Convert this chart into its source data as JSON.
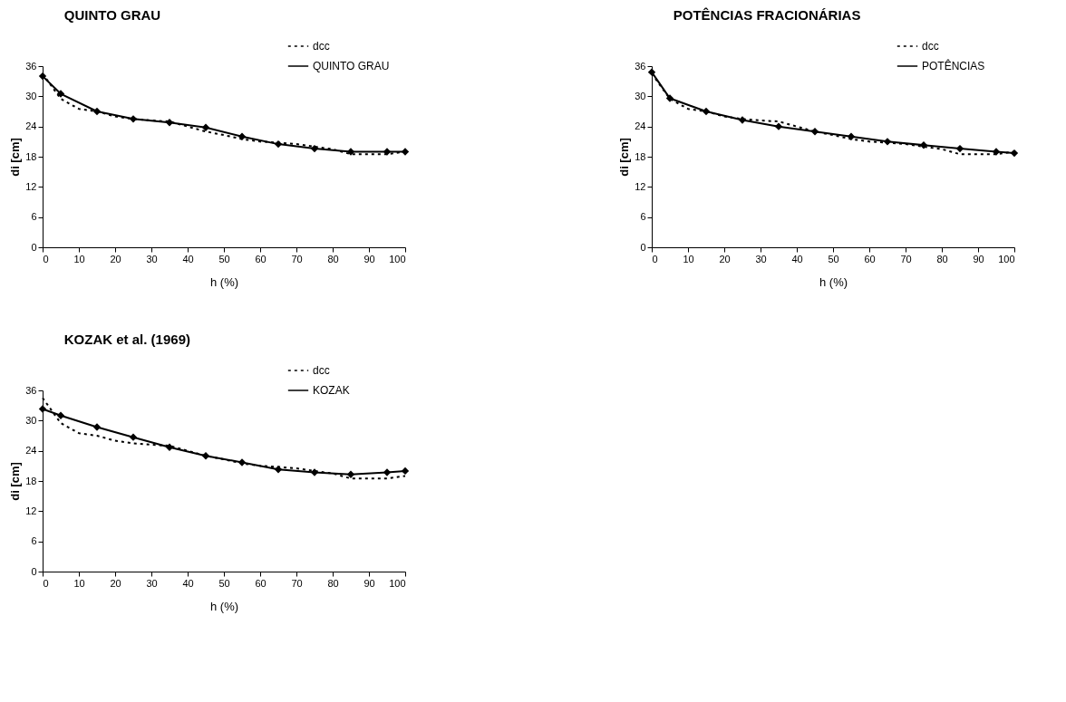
{
  "chart_data": [
    {
      "type": "line",
      "title": "QUINTO GRAU",
      "xlabel": "h (%)",
      "ylabel": "di [cm]",
      "xlim": [
        0,
        100
      ],
      "xticks": [
        0,
        10,
        20,
        30,
        40,
        50,
        60,
        70,
        80,
        90,
        100
      ],
      "ylim": [
        0,
        36
      ],
      "yticks": [
        0,
        6,
        12,
        18,
        24,
        30,
        36
      ],
      "grid": false,
      "legend": "top right",
      "series": [
        {
          "name": "dcc",
          "color": "#000000",
          "line_style": "dotted",
          "marker": "none",
          "x": [
            0,
            5,
            10,
            15,
            20,
            25,
            30,
            35,
            40,
            45,
            50,
            55,
            60,
            65,
            70,
            75,
            80,
            85,
            90,
            95,
            100
          ],
          "values": [
            34.5,
            29.5,
            27.5,
            27,
            26,
            25.5,
            25.2,
            25,
            24,
            23,
            22.3,
            21.5,
            21,
            20.8,
            20.5,
            20,
            19.5,
            18.5,
            18.5,
            18.5,
            19
          ]
        },
        {
          "name": "QUINTO GRAU",
          "color": "#000000",
          "line_style": "solid",
          "marker": "diamond",
          "x": [
            0,
            5,
            15,
            25,
            35,
            45,
            55,
            65,
            75,
            85,
            95,
            100
          ],
          "values": [
            34,
            30.5,
            27,
            25.5,
            24.8,
            23.8,
            22,
            20.5,
            19.6,
            19,
            19,
            19
          ]
        }
      ]
    },
    {
      "type": "line",
      "title": "POTÊNCIAS FRACIONÁRIAS",
      "xlabel": "h (%)",
      "ylabel": "di [cm]",
      "xlim": [
        0,
        100
      ],
      "xticks": [
        0,
        10,
        20,
        30,
        40,
        50,
        60,
        70,
        80,
        90,
        100
      ],
      "ylim": [
        0,
        36
      ],
      "yticks": [
        0,
        6,
        12,
        18,
        24,
        30,
        36
      ],
      "grid": false,
      "legend": "top right",
      "series": [
        {
          "name": "dcc",
          "color": "#000000",
          "line_style": "dotted",
          "marker": "none",
          "x": [
            0,
            5,
            10,
            15,
            20,
            25,
            30,
            35,
            40,
            45,
            50,
            55,
            60,
            65,
            70,
            75,
            80,
            85,
            90,
            95,
            100
          ],
          "values": [
            34.5,
            29.5,
            27.5,
            27,
            26,
            25.5,
            25.2,
            25,
            24,
            23,
            22.3,
            21.5,
            21,
            20.8,
            20.5,
            20,
            19.5,
            18.5,
            18.5,
            18.5,
            19
          ]
        },
        {
          "name": "POTÊNCIAS",
          "color": "#000000",
          "line_style": "solid",
          "marker": "diamond",
          "x": [
            0,
            5,
            15,
            25,
            35,
            45,
            55,
            65,
            75,
            85,
            95,
            100
          ],
          "values": [
            34.8,
            29.6,
            27,
            25.3,
            24,
            23,
            22,
            21,
            20.3,
            19.6,
            19,
            18.7
          ]
        }
      ]
    },
    {
      "type": "line",
      "title": "KOZAK et al. (1969)",
      "xlabel": "h (%)",
      "ylabel": "di [cm]",
      "xlim": [
        0,
        100
      ],
      "xticks": [
        0,
        10,
        20,
        30,
        40,
        50,
        60,
        70,
        80,
        90,
        100
      ],
      "ylim": [
        0,
        36
      ],
      "yticks": [
        0,
        6,
        12,
        18,
        24,
        30,
        36
      ],
      "grid": false,
      "legend": "top right",
      "series": [
        {
          "name": "dcc",
          "color": "#000000",
          "line_style": "dotted",
          "marker": "none",
          "x": [
            0,
            5,
            10,
            15,
            20,
            25,
            30,
            35,
            40,
            45,
            50,
            55,
            60,
            65,
            70,
            75,
            80,
            85,
            90,
            95,
            100
          ],
          "values": [
            34.5,
            29.5,
            27.5,
            27,
            26,
            25.5,
            25.2,
            25,
            24,
            23,
            22.3,
            21.5,
            21,
            20.8,
            20.5,
            20,
            19.5,
            18.5,
            18.5,
            18.5,
            19
          ]
        },
        {
          "name": "KOZAK",
          "color": "#000000",
          "line_style": "solid",
          "marker": "diamond",
          "x": [
            0,
            5,
            15,
            25,
            35,
            45,
            55,
            65,
            75,
            85,
            95,
            100
          ],
          "values": [
            32.3,
            31,
            28.7,
            26.7,
            24.7,
            23,
            21.7,
            20.3,
            19.7,
            19.3,
            19.7,
            20
          ]
        }
      ]
    }
  ]
}
